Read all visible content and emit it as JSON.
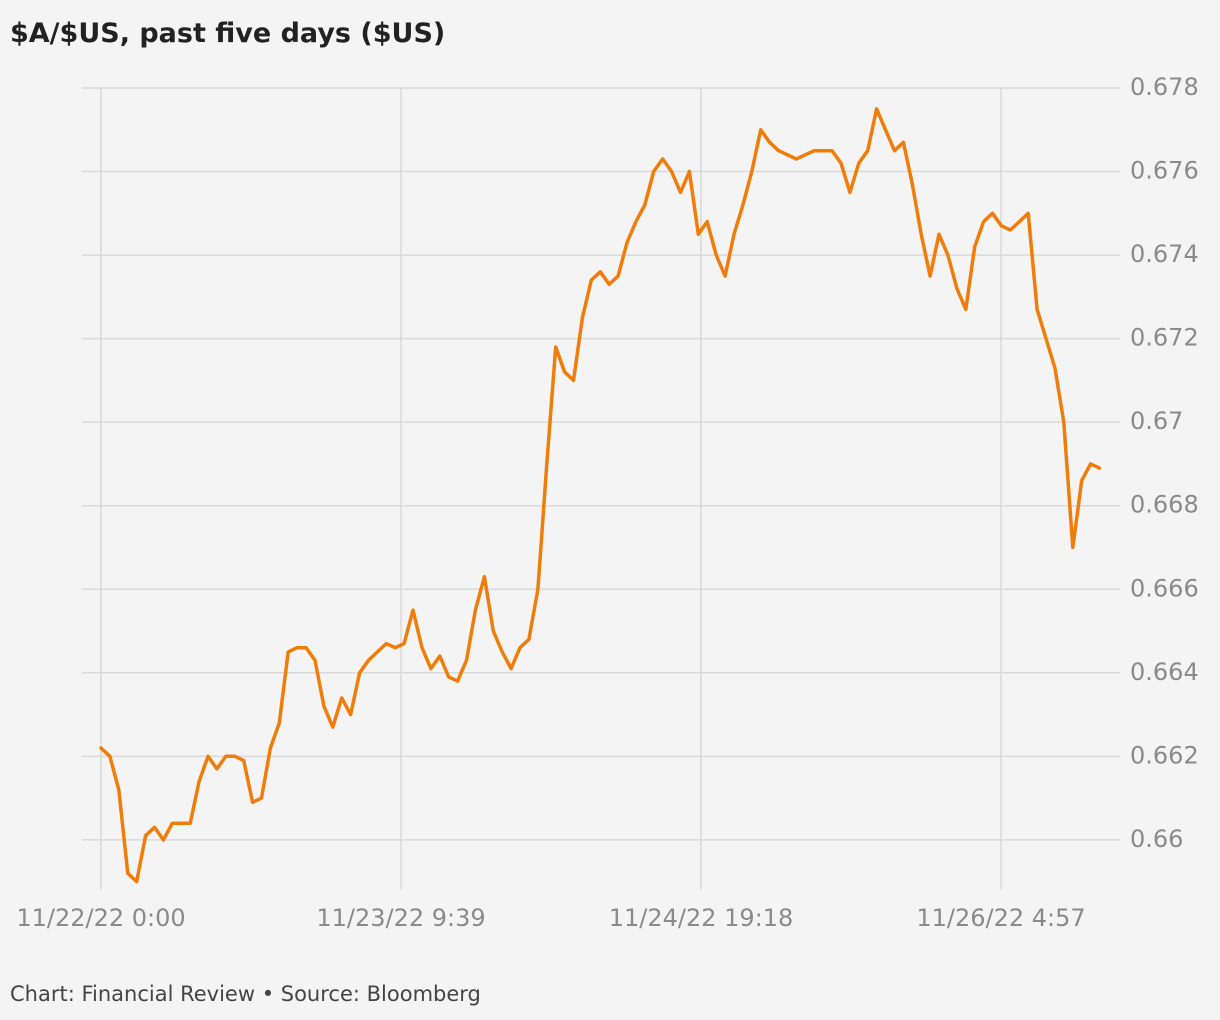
{
  "chart_data": {
    "type": "line",
    "title": "$A/$US, past five days ($US)",
    "source": "Chart: Financial Review • Source: Bloomberg",
    "x": [
      "11/22/22 0:00",
      "11/22/22 1:00",
      "11/22/22 2:00",
      "11/22/22 3:00",
      "11/22/22 4:00",
      "11/22/22 5:00",
      "11/22/22 6:00",
      "11/22/22 7:00",
      "11/22/22 8:00",
      "11/22/22 9:00",
      "11/22/22 10:00",
      "11/22/22 11:00",
      "11/22/22 12:00",
      "11/22/22 13:00",
      "11/22/22 14:00",
      "11/22/22 15:00",
      "11/22/22 16:00",
      "11/22/22 17:00",
      "11/22/22 18:00",
      "11/22/22 19:00",
      "11/22/22 20:00",
      "11/22/22 21:00",
      "11/22/22 22:00",
      "11/22/22 23:00",
      "11/23/22 0:00",
      "11/23/22 1:00",
      "11/23/22 2:00",
      "11/23/22 3:00",
      "11/23/22 4:00",
      "11/23/22 5:00",
      "11/23/22 6:00",
      "11/23/22 7:00",
      "11/23/22 8:00",
      "11/23/22 9:00",
      "11/23/22 10:00",
      "11/23/22 11:00",
      "11/23/22 12:00",
      "11/23/22 13:00",
      "11/23/22 14:00",
      "11/23/22 15:00",
      "11/23/22 16:00",
      "11/23/22 17:00",
      "11/23/22 18:00",
      "11/23/22 19:00",
      "11/23/22 20:00",
      "11/23/22 21:00",
      "11/23/22 22:00",
      "11/23/22 23:00",
      "11/24/22 0:00",
      "11/24/22 1:00",
      "11/24/22 2:00",
      "11/24/22 3:00",
      "11/24/22 4:00",
      "11/24/22 5:00",
      "11/24/22 6:00",
      "11/24/22 7:00",
      "11/24/22 8:00",
      "11/24/22 9:00",
      "11/24/22 10:00",
      "11/24/22 11:00",
      "11/24/22 12:00",
      "11/24/22 13:00",
      "11/24/22 14:00",
      "11/24/22 15:00",
      "11/24/22 16:00",
      "11/24/22 17:00",
      "11/24/22 18:00",
      "11/24/22 19:00",
      "11/24/22 20:00",
      "11/24/22 21:00",
      "11/24/22 22:00",
      "11/24/22 23:00",
      "11/25/22 0:00",
      "11/25/22 1:00",
      "11/25/22 2:00",
      "11/25/22 3:00",
      "11/25/22 4:00",
      "11/25/22 5:00",
      "11/25/22 6:00",
      "11/25/22 7:00",
      "11/25/22 8:00",
      "11/25/22 9:00",
      "11/25/22 10:00",
      "11/25/22 11:00",
      "11/25/22 12:00",
      "11/25/22 13:00",
      "11/25/22 14:00",
      "11/25/22 15:00",
      "11/25/22 16:00",
      "11/25/22 17:00",
      "11/25/22 18:00",
      "11/25/22 19:00",
      "11/25/22 20:00",
      "11/25/22 21:00",
      "11/25/22 22:00",
      "11/25/22 23:00",
      "11/26/22 0:00",
      "11/26/22 1:00",
      "11/26/22 2:00",
      "11/26/22 3:00",
      "11/26/22 4:00",
      "11/26/22 5:00",
      "11/26/22 6:00",
      "11/26/22 7:00",
      "11/26/22 8:00",
      "11/26/22 9:00",
      "11/26/22 10:00",
      "11/26/22 11:00",
      "11/26/22 12:00",
      "11/26/22 13:00",
      "11/26/22 14:00",
      "11/26/22 15:00",
      "11/26/22 16:00"
    ],
    "series": [
      {
        "color": "#f07d0a",
        "values": [
          0.6622,
          0.662,
          0.6612,
          0.6592,
          0.659,
          0.6601,
          0.6603,
          0.66,
          0.6604,
          0.6604,
          0.6604,
          0.6614,
          0.662,
          0.6617,
          0.662,
          0.662,
          0.6619,
          0.6609,
          0.661,
          0.6622,
          0.6628,
          0.6645,
          0.6646,
          0.6646,
          0.6643,
          0.6632,
          0.6627,
          0.6634,
          0.663,
          0.664,
          0.6643,
          0.6645,
          0.6647,
          0.6646,
          0.6647,
          0.6655,
          0.6646,
          0.6641,
          0.6644,
          0.6639,
          0.6638,
          0.6643,
          0.6655,
          0.6663,
          0.665,
          0.6645,
          0.6641,
          0.6646,
          0.6648,
          0.666,
          0.669,
          0.6718,
          0.6712,
          0.671,
          0.6725,
          0.6734,
          0.6736,
          0.6733,
          0.6735,
          0.6743,
          0.6748,
          0.6752,
          0.676,
          0.6763,
          0.676,
          0.6755,
          0.676,
          0.6745,
          0.6748,
          0.674,
          0.6735,
          0.6745,
          0.6752,
          0.676,
          0.677,
          0.6767,
          0.6765,
          0.6764,
          0.6763,
          0.6764,
          0.6765,
          0.6765,
          0.6765,
          0.6762,
          0.6755,
          0.6762,
          0.6765,
          0.6775,
          0.677,
          0.6765,
          0.6767,
          0.6757,
          0.6745,
          0.6735,
          0.6745,
          0.674,
          0.6732,
          0.6727,
          0.6742,
          0.6748,
          0.675,
          0.6747,
          0.6746,
          0.6748,
          0.675,
          0.6727,
          0.672,
          0.6713,
          0.67,
          0.667,
          0.6686,
          0.669,
          0.6689
        ]
      }
    ],
    "xlim": [
      "11/21/22 21:52",
      "11/26/22 18:18"
    ],
    "xticks": [
      "11/22/22 0:00",
      "11/23/22 9:39",
      "11/24/22 19:18",
      "11/26/22 4:57"
    ],
    "ylim": [
      0.6588,
      0.678
    ],
    "yticks": [
      0.66,
      0.662,
      0.664,
      0.666,
      0.668,
      0.67,
      0.672,
      0.674,
      0.676,
      0.678
    ],
    "grid": true
  }
}
